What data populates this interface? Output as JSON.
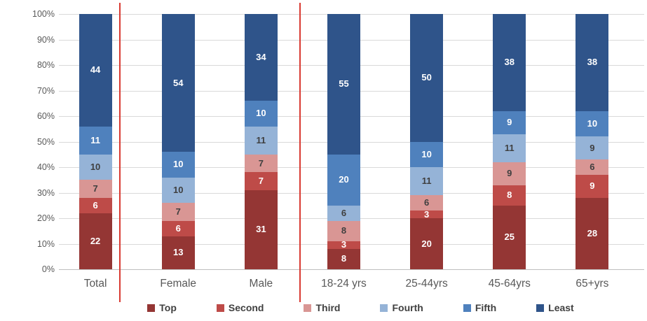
{
  "chart_data": {
    "type": "bar",
    "stacked": true,
    "percent_stacked": true,
    "title": "",
    "xlabel": "",
    "ylabel": "",
    "ylim": [
      0,
      100
    ],
    "grid": true,
    "legend_position": "bottom",
    "y_ticks": [
      "0%",
      "10%",
      "20%",
      "30%",
      "40%",
      "50%",
      "60%",
      "70%",
      "80%",
      "90%",
      "100%"
    ],
    "categories": [
      "Total",
      "Female",
      "Male",
      "18-24 yrs",
      "25-44yrs",
      "45-64yrs",
      "65+yrs"
    ],
    "series": [
      {
        "name": "Top",
        "color": "#943634",
        "label_color": "#FFFFFF",
        "values": [
          22,
          13,
          31,
          8,
          20,
          25,
          28
        ]
      },
      {
        "name": "Second",
        "color": "#BE4B48",
        "label_color": "#FFFFFF",
        "values": [
          6,
          6,
          7,
          3,
          3,
          8,
          9
        ]
      },
      {
        "name": "Third",
        "color": "#D99694",
        "label_color": "#3F3F3F",
        "values": [
          7,
          7,
          7,
          8,
          6,
          9,
          6
        ]
      },
      {
        "name": "Fourth",
        "color": "#95B3D7",
        "label_color": "#3F3F3F",
        "values": [
          10,
          10,
          11,
          6,
          11,
          11,
          9
        ]
      },
      {
        "name": "Fifth",
        "color": "#4F81BD",
        "label_color": "#FFFFFF",
        "values": [
          11,
          10,
          10,
          20,
          10,
          9,
          10
        ]
      },
      {
        "name": "Least",
        "color": "#2F548A",
        "label_color": "#FFFFFF",
        "values": [
          44,
          54,
          34,
          55,
          50,
          38,
          38
        ]
      }
    ],
    "dividers": {
      "color": "#D93A32",
      "after_categories": [
        "Total",
        "Male"
      ]
    }
  }
}
